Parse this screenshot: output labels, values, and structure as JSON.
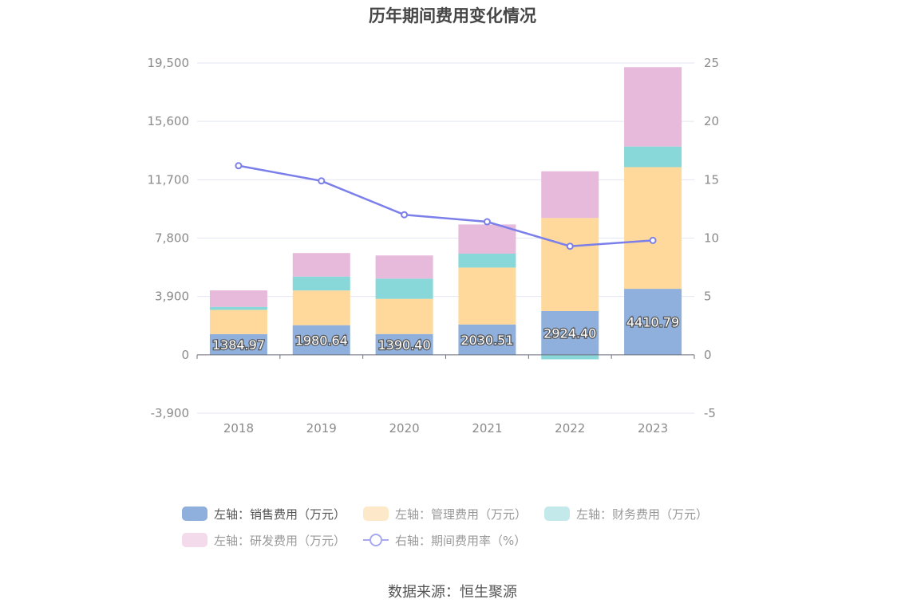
{
  "chart_data": {
    "type": "bar",
    "title": "历年期间费用变化情况",
    "categories": [
      "2018",
      "2019",
      "2020",
      "2021",
      "2022",
      "2023"
    ],
    "stacked": true,
    "series": [
      {
        "name": "左轴：销售费用（万元）",
        "axis": "left",
        "type": "bar",
        "color": "#8fb0dc",
        "values": [
          1384.97,
          1980.64,
          1390.4,
          2030.51,
          2924.4,
          4410.79
        ],
        "labels": [
          "1384.97",
          "1980.64",
          "1390.40",
          "2030.51",
          "2924.40",
          "4410.79"
        ]
      },
      {
        "name": "左轴：管理费用（万元）",
        "axis": "left",
        "type": "bar",
        "color": "#ffd99c",
        "values": [
          1620,
          2320,
          2350,
          3800,
          6220,
          8130
        ]
      },
      {
        "name": "左轴：财务费用（万元）",
        "axis": "left",
        "type": "bar",
        "color": "#88d7d9",
        "values": [
          200,
          930,
          1350,
          930,
          -300,
          1380
        ]
      },
      {
        "name": "左轴：研发费用（万元）",
        "axis": "left",
        "type": "bar",
        "color": "#e7b9da",
        "values": [
          1100,
          1570,
          1550,
          1950,
          3120,
          5300
        ]
      },
      {
        "name": "右轴：期间费用率（%）",
        "axis": "right",
        "type": "line",
        "color": "#7b7fea",
        "values": [
          16.2,
          14.9,
          12.0,
          11.4,
          9.3,
          9.8
        ]
      }
    ],
    "left_axis": {
      "min": -3900,
      "max": 19500,
      "ticks": [
        -3900,
        0,
        3900,
        7800,
        11700,
        15600,
        19500
      ],
      "tick_labels": [
        "-3,900",
        "0",
        "3,900",
        "7,800",
        "11,700",
        "15,600",
        "19,500"
      ]
    },
    "right_axis": {
      "min": -5,
      "max": 25,
      "ticks": [
        -5,
        0,
        5,
        10,
        15,
        20,
        25
      ],
      "tick_labels": [
        "-5",
        "0",
        "5",
        "10",
        "15",
        "20",
        "25"
      ]
    },
    "grid": true,
    "legend_position": "bottom"
  },
  "legend": {
    "row1": [
      "左轴：销售费用（万元）",
      "左轴：管理费用（万元）",
      "左轴：财务费用（万元）"
    ],
    "row2": [
      "左轴：研发费用（万元）",
      "右轴：期间费用率（%）"
    ]
  },
  "colors": {
    "sales": "#8fb0dc",
    "sales_legend": "#8fb0dc",
    "admin_legend": "#fde9c9",
    "finance_legend": "#c3e9eb",
    "rd_legend": "#f3dbec"
  },
  "source": "数据来源：恒生聚源"
}
